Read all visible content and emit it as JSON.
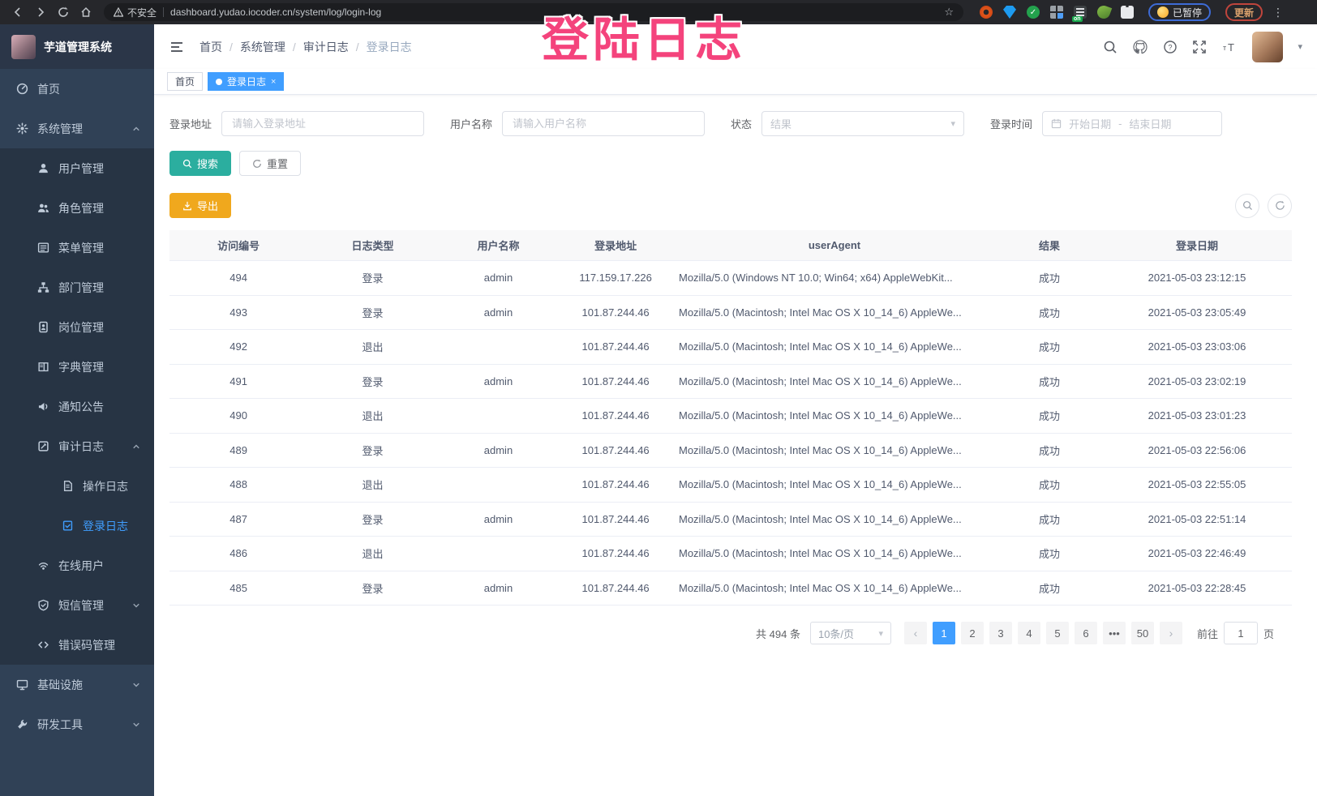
{
  "browser": {
    "security_label": "不安全",
    "url": "dashboard.yudao.iocoder.cn/system/log/login-log",
    "paused_label": "已暂停",
    "update_label": "更新"
  },
  "overlay": {
    "text": "登陆日志"
  },
  "header": {
    "logo_title": "芋道管理系统",
    "breadcrumb": [
      "首页",
      "系统管理",
      "审计日志",
      "登录日志"
    ]
  },
  "tags": [
    {
      "label": "首页",
      "active": false,
      "closable": false
    },
    {
      "label": "登录日志",
      "active": true,
      "closable": true
    }
  ],
  "sidebar": {
    "items": [
      {
        "label": "首页",
        "icon": "dashboard-icon",
        "level": 0
      },
      {
        "label": "系统管理",
        "icon": "gear-icon",
        "level": 0,
        "arrow": "up"
      },
      {
        "label": "用户管理",
        "icon": "user-icon",
        "level": 1,
        "sub": true
      },
      {
        "label": "角色管理",
        "icon": "users-icon",
        "level": 1,
        "sub": true
      },
      {
        "label": "菜单管理",
        "icon": "menu-list-icon",
        "level": 1,
        "sub": true
      },
      {
        "label": "部门管理",
        "icon": "org-tree-icon",
        "level": 1,
        "sub": true
      },
      {
        "label": "岗位管理",
        "icon": "id-badge-icon",
        "level": 1,
        "sub": true
      },
      {
        "label": "字典管理",
        "icon": "dictionary-icon",
        "level": 1,
        "sub": true
      },
      {
        "label": "通知公告",
        "icon": "megaphone-icon",
        "level": 1,
        "sub": true
      },
      {
        "label": "审计日志",
        "icon": "audit-log-icon",
        "level": 1,
        "sub": true,
        "arrow": "up"
      },
      {
        "label": "操作日志",
        "icon": "operation-log-icon",
        "level": 2,
        "sub": true
      },
      {
        "label": "登录日志",
        "icon": "login-log-icon",
        "level": 2,
        "sub": true,
        "active": true
      },
      {
        "label": "在线用户",
        "icon": "online-users-icon",
        "level": 1,
        "sub": true
      },
      {
        "label": "短信管理",
        "icon": "sms-shield-icon",
        "level": 1,
        "sub": true,
        "arrow": "down"
      },
      {
        "label": "错误码管理",
        "icon": "error-code-icon",
        "level": 1,
        "sub": true
      },
      {
        "label": "基础设施",
        "icon": "infrastructure-icon",
        "level": 0,
        "arrow": "down"
      },
      {
        "label": "研发工具",
        "icon": "dev-tools-icon",
        "level": 0,
        "arrow": "down"
      }
    ]
  },
  "filters": {
    "login_address_label": "登录地址",
    "login_address_placeholder": "请输入登录地址",
    "username_label": "用户名称",
    "username_placeholder": "请输入用户名称",
    "status_label": "状态",
    "status_placeholder": "结果",
    "login_time_label": "登录时间",
    "date_start_placeholder": "开始日期",
    "date_separator": "-",
    "date_end_placeholder": "结束日期",
    "search_label": "搜索",
    "reset_label": "重置"
  },
  "toolbar": {
    "export_label": "导出"
  },
  "table": {
    "headers": [
      "访问编号",
      "日志类型",
      "用户名称",
      "登录地址",
      "userAgent",
      "结果",
      "登录日期"
    ],
    "rows": [
      [
        "494",
        "登录",
        "admin",
        "117.159.17.226",
        "Mozilla/5.0 (Windows NT 10.0; Win64; x64) AppleWebKit...",
        "成功",
        "2021-05-03 23:12:15"
      ],
      [
        "493",
        "登录",
        "admin",
        "101.87.244.46",
        "Mozilla/5.0 (Macintosh; Intel Mac OS X 10_14_6) AppleWe...",
        "成功",
        "2021-05-03 23:05:49"
      ],
      [
        "492",
        "退出",
        "",
        "101.87.244.46",
        "Mozilla/5.0 (Macintosh; Intel Mac OS X 10_14_6) AppleWe...",
        "成功",
        "2021-05-03 23:03:06"
      ],
      [
        "491",
        "登录",
        "admin",
        "101.87.244.46",
        "Mozilla/5.0 (Macintosh; Intel Mac OS X 10_14_6) AppleWe...",
        "成功",
        "2021-05-03 23:02:19"
      ],
      [
        "490",
        "退出",
        "",
        "101.87.244.46",
        "Mozilla/5.0 (Macintosh; Intel Mac OS X 10_14_6) AppleWe...",
        "成功",
        "2021-05-03 23:01:23"
      ],
      [
        "489",
        "登录",
        "admin",
        "101.87.244.46",
        "Mozilla/5.0 (Macintosh; Intel Mac OS X 10_14_6) AppleWe...",
        "成功",
        "2021-05-03 22:56:06"
      ],
      [
        "488",
        "退出",
        "",
        "101.87.244.46",
        "Mozilla/5.0 (Macintosh; Intel Mac OS X 10_14_6) AppleWe...",
        "成功",
        "2021-05-03 22:55:05"
      ],
      [
        "487",
        "登录",
        "admin",
        "101.87.244.46",
        "Mozilla/5.0 (Macintosh; Intel Mac OS X 10_14_6) AppleWe...",
        "成功",
        "2021-05-03 22:51:14"
      ],
      [
        "486",
        "退出",
        "",
        "101.87.244.46",
        "Mozilla/5.0 (Macintosh; Intel Mac OS X 10_14_6) AppleWe...",
        "成功",
        "2021-05-03 22:46:49"
      ],
      [
        "485",
        "登录",
        "admin",
        "101.87.244.46",
        "Mozilla/5.0 (Macintosh; Intel Mac OS X 10_14_6) AppleWe...",
        "成功",
        "2021-05-03 22:28:45"
      ]
    ]
  },
  "pagination": {
    "total_label": "共 494 条",
    "page_size_label": "10条/页",
    "prev_label": "‹",
    "next_label": "›",
    "pages": [
      "1",
      "2",
      "3",
      "4",
      "5",
      "6",
      "•••",
      "50"
    ],
    "active_page": "1",
    "goto_label": "前往",
    "goto_value": "1",
    "goto_suffix": "页"
  },
  "colors": {
    "primary": "#409EFF",
    "search_button": "#2BAE9F",
    "export_button": "#F0A81D",
    "sidebar_bg": "#304156",
    "sidebar_submenu_bg": "#273444",
    "active_tag": "#409EFF",
    "overlay_pink": "#F4437C"
  }
}
